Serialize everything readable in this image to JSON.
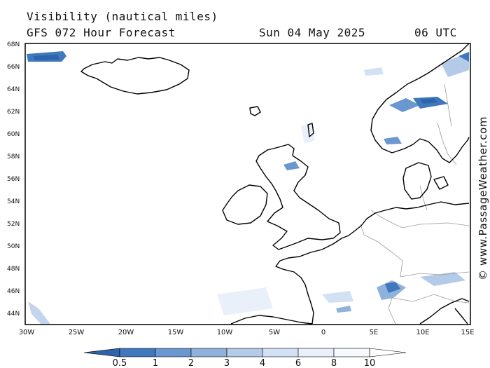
{
  "header": {
    "title": "Visibility (nautical miles)",
    "model": "GFS 072 Hour Forecast",
    "date": "Sun 04 May 2025",
    "time": "06 UTC"
  },
  "watermark": "© www.PassageWeather.com",
  "map": {
    "lat_range": [
      43,
      68
    ],
    "lon_range": [
      -30,
      15
    ],
    "lat_labels": [
      "44N",
      "46N",
      "48N",
      "50N",
      "52N",
      "54N",
      "56N",
      "58N",
      "60N",
      "62N",
      "64N",
      "66N",
      "68N"
    ],
    "lon_labels": [
      "30W",
      "25W",
      "20W",
      "15W",
      "10W",
      "5W",
      "0",
      "5E",
      "10E",
      "15E"
    ],
    "land_stroke": "#000000",
    "border_stroke": "#9a9a9a"
  },
  "legend": {
    "labels": [
      "0.5",
      "1",
      "2",
      "3",
      "4",
      "6",
      "8",
      "10"
    ],
    "colors": [
      "#2f64ad",
      "#3f78bd",
      "#6a97cf",
      "#8eb2dc",
      "#b3cbe8",
      "#d2e1f3",
      "#e9f0fa",
      "#f6f9fe",
      "#ffffff"
    ]
  }
}
